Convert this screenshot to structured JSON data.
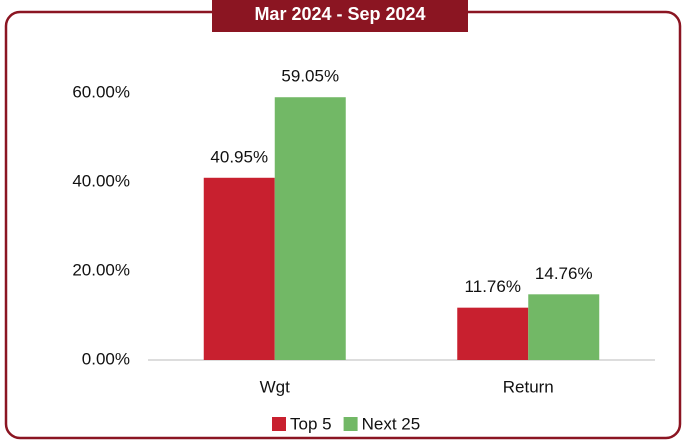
{
  "chart_data": {
    "type": "bar",
    "title": "Mar 2024 - Sep 2024",
    "categories": [
      "Wgt",
      "Return"
    ],
    "series": [
      {
        "name": "Top 5",
        "color": "#c8202f",
        "values": [
          40.95,
          11.76
        ],
        "value_labels": [
          "40.95%",
          "11.76%"
        ]
      },
      {
        "name": "Next 25",
        "color": "#72b866",
        "values": [
          59.05,
          14.76
        ],
        "value_labels": [
          "59.05%",
          "14.76%"
        ]
      }
    ],
    "ylim": [
      0,
      60
    ],
    "yticks": [
      {
        "value": 0,
        "label": "0.00%"
      },
      {
        "value": 20,
        "label": "20.00%"
      },
      {
        "value": 40,
        "label": "40.00%"
      },
      {
        "value": 60,
        "label": "60.00%"
      }
    ],
    "grid": false,
    "legend": "bottom"
  }
}
